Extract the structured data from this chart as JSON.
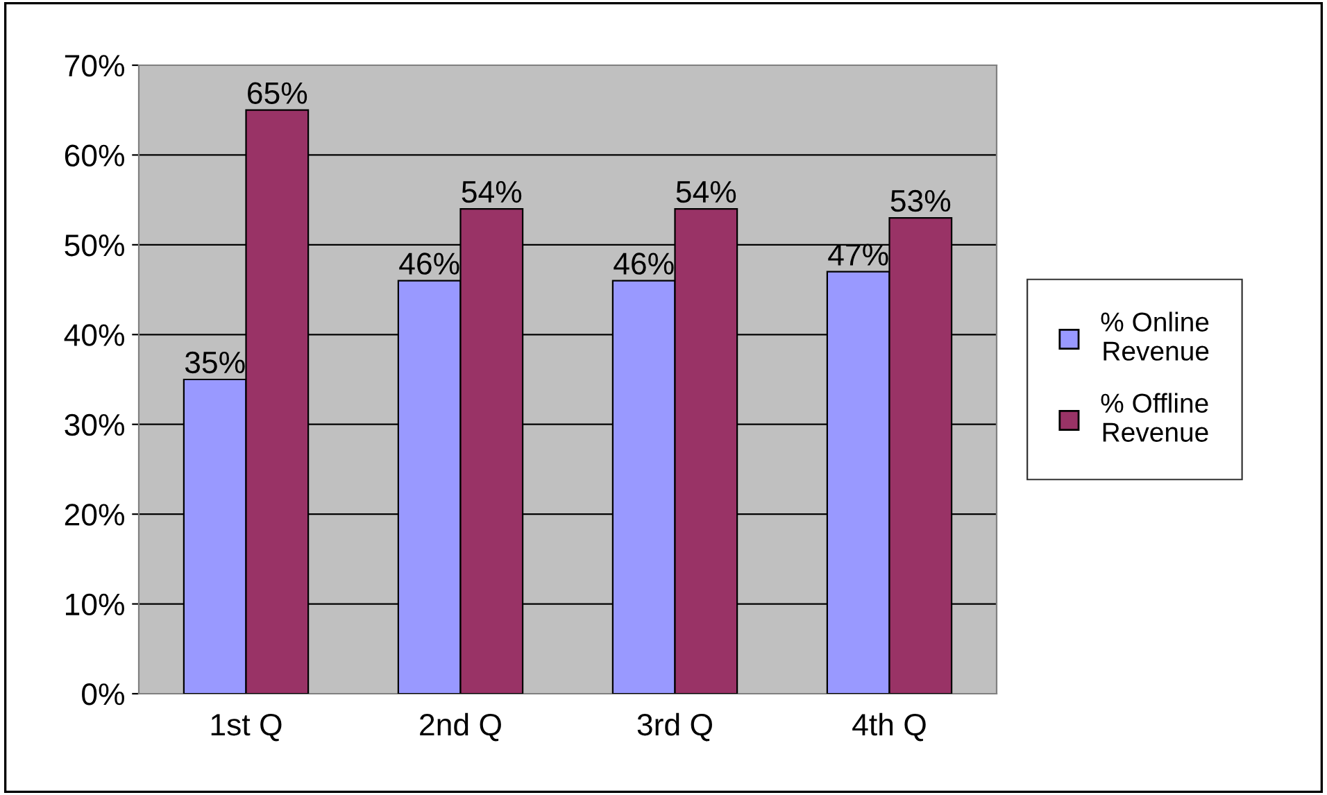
{
  "chart_data": {
    "type": "bar",
    "categories": [
      "1st Q",
      "2nd Q",
      "3rd Q",
      "4th Q"
    ],
    "series": [
      {
        "name": "% Online\nRevenue",
        "color": "#9999ff",
        "values": [
          35,
          46,
          46,
          47
        ],
        "value_labels": [
          "35%",
          "46%",
          "46%",
          "47%"
        ]
      },
      {
        "name": "% Offline\nRevenue",
        "color": "#993366",
        "values": [
          65,
          54,
          54,
          53
        ],
        "value_labels": [
          "65%",
          "54%",
          "54%",
          "53%"
        ]
      }
    ],
    "ylim": [
      0,
      70
    ],
    "yticks": [
      {
        "value": 0,
        "label": "0%"
      },
      {
        "value": 10,
        "label": "10%"
      },
      {
        "value": 20,
        "label": "20%"
      },
      {
        "value": 30,
        "label": "30%"
      },
      {
        "value": 40,
        "label": "40%"
      },
      {
        "value": 50,
        "label": "50%"
      },
      {
        "value": 60,
        "label": "60%"
      },
      {
        "value": 70,
        "label": "70%"
      }
    ],
    "grid": "y",
    "legend": "right"
  }
}
